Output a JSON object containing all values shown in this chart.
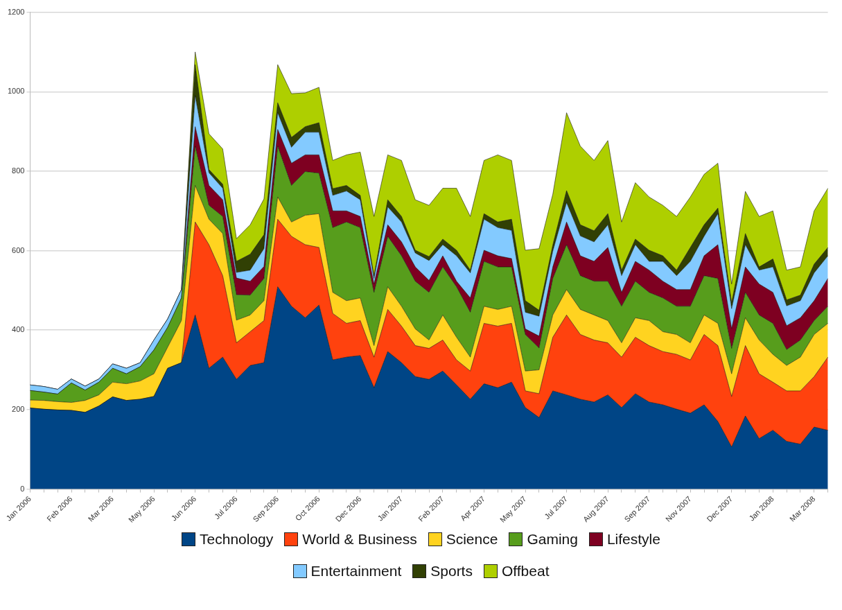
{
  "chart_data": {
    "type": "area",
    "stacked": true,
    "grid": "y",
    "legend": "bottom",
    "categories": [
      "Jan 2006",
      null,
      null,
      "Feb 2006",
      null,
      null,
      "Mar 2006",
      null,
      null,
      "May 2006",
      null,
      null,
      "Jun 2006",
      null,
      null,
      "Jul 2006",
      null,
      null,
      "Sep 2006",
      null,
      null,
      "Oct 2006",
      null,
      null,
      "Dec 2006",
      null,
      null,
      "Jan 2007",
      null,
      null,
      "Feb 2007",
      null,
      null,
      "Apr 2007",
      null,
      null,
      "May 2007",
      null,
      null,
      "Jul 2007",
      null,
      null,
      "Aug 2007",
      null,
      null,
      "Sep 2007",
      null,
      null,
      "Nov 2007",
      null,
      null,
      "Dec 2007",
      null,
      null,
      "Jan 2008",
      null,
      null,
      "Mar 2008",
      null
    ],
    "ylim": [
      0,
      1200
    ],
    "yticks": [
      0,
      200,
      400,
      600,
      800,
      1000,
      1200
    ],
    "series": [
      {
        "name": "Technology",
        "color": "#004586",
        "values": [
          204,
          201,
          199,
          198,
          193,
          209,
          232,
          223,
          226,
          233,
          304,
          318,
          438,
          304,
          332,
          276,
          311,
          318,
          509,
          460,
          431,
          463,
          325,
          332,
          336,
          255,
          346,
          318,
          283,
          276,
          297,
          262,
          226,
          265,
          255,
          269,
          205,
          180,
          247,
          237,
          226,
          219,
          237,
          205,
          240,
          219,
          212,
          201,
          191,
          212,
          170,
          106,
          184,
          127,
          148,
          120,
          113,
          156,
          148
        ]
      },
      {
        "name": "World & Business",
        "color": "#ff420e",
        "values": [
          0,
          0,
          0,
          0,
          0,
          0,
          0,
          0,
          0,
          0,
          0,
          0,
          234,
          311,
          205,
          92,
          85,
          106,
          170,
          176,
          184,
          145,
          117,
          85,
          88,
          77,
          106,
          92,
          78,
          78,
          78,
          63,
          71,
          152,
          155,
          148,
          42,
          60,
          135,
          201,
          163,
          156,
          131,
          127,
          142,
          142,
          134,
          138,
          134,
          177,
          191,
          127,
          177,
          163,
          121,
          127,
          134,
          127,
          184
        ]
      },
      {
        "name": "Science",
        "color": "#ffd320",
        "values": [
          20,
          22,
          21,
          20,
          30,
          28,
          37,
          42,
          46,
          57,
          53,
          106,
          92,
          64,
          106,
          57,
          42,
          50,
          56,
          36,
          74,
          85,
          53,
          57,
          57,
          29,
          57,
          50,
          42,
          21,
          63,
          57,
          35,
          43,
          42,
          43,
          50,
          60,
          56,
          64,
          63,
          63,
          56,
          36,
          49,
          63,
          50,
          50,
          43,
          49,
          56,
          57,
          70,
          85,
          70,
          64,
          85,
          106,
          85
        ]
      },
      {
        "name": "Gaming",
        "color": "#579d1c",
        "values": [
          24,
          21,
          19,
          49,
          26,
          32,
          35,
          25,
          36,
          60,
          50,
          57,
          99,
          35,
          43,
          64,
          50,
          56,
          128,
          92,
          110,
          102,
          163,
          198,
          177,
          134,
          127,
          127,
          120,
          120,
          121,
          127,
          113,
          113,
          107,
          99,
          92,
          55,
          92,
          113,
          85,
          85,
          99,
          92,
          92,
          71,
          85,
          71,
          92,
          99,
          113,
          64,
          64,
          63,
          78,
          40,
          43,
          35,
          43
        ]
      },
      {
        "name": "Lifestyle",
        "color": "#7e0021",
        "values": [
          0,
          0,
          0,
          0,
          0,
          0,
          0,
          0,
          0,
          0,
          0,
          0,
          49,
          50,
          42,
          42,
          35,
          30,
          42,
          56,
          42,
          46,
          42,
          28,
          28,
          21,
          29,
          35,
          36,
          30,
          28,
          14,
          36,
          28,
          28,
          21,
          14,
          30,
          29,
          57,
          50,
          50,
          85,
          35,
          50,
          56,
          42,
          42,
          42,
          50,
          85,
          50,
          64,
          78,
          78,
          60,
          56,
          50,
          70
        ]
      },
      {
        "name": "Entertainment",
        "color": "#83caff",
        "values": [
          14,
          14,
          12,
          10,
          10,
          8,
          11,
          14,
          10,
          25,
          21,
          21,
          78,
          32,
          29,
          14,
          28,
          45,
          42,
          40,
          57,
          57,
          39,
          50,
          42,
          14,
          45,
          50,
          35,
          50,
          28,
          64,
          63,
          78,
          71,
          71,
          42,
          50,
          40,
          49,
          50,
          49,
          57,
          42,
          42,
          22,
          50,
          35,
          71,
          49,
          78,
          50,
          56,
          35,
          64,
          50,
          43,
          70,
          57
        ]
      },
      {
        "name": "Sports",
        "color": "#314004",
        "values": [
          0,
          0,
          0,
          0,
          0,
          0,
          0,
          0,
          0,
          0,
          0,
          0,
          78,
          8,
          10,
          28,
          40,
          35,
          25,
          25,
          14,
          24,
          17,
          14,
          11,
          7,
          18,
          14,
          7,
          10,
          14,
          14,
          7,
          14,
          14,
          28,
          29,
          15,
          15,
          30,
          28,
          28,
          28,
          14,
          14,
          28,
          14,
          14,
          35,
          29,
          14,
          15,
          28,
          8,
          20,
          15,
          14,
          22,
          21
        ]
      },
      {
        "name": "Offbeat",
        "color": "#aecf00",
        "values": [
          0,
          0,
          0,
          0,
          0,
          0,
          0,
          0,
          0,
          0,
          0,
          0,
          32,
          90,
          89,
          57,
          74,
          90,
          96,
          110,
          85,
          89,
          71,
          77,
          109,
          149,
          113,
          141,
          127,
          129,
          128,
          156,
          135,
          134,
          169,
          148,
          127,
          155,
          128,
          196,
          198,
          177,
          184,
          121,
          142,
          134,
          127,
          135,
          127,
          127,
          113,
          47,
          106,
          127,
          121,
          75,
          71,
          134,
          149
        ]
      }
    ]
  }
}
